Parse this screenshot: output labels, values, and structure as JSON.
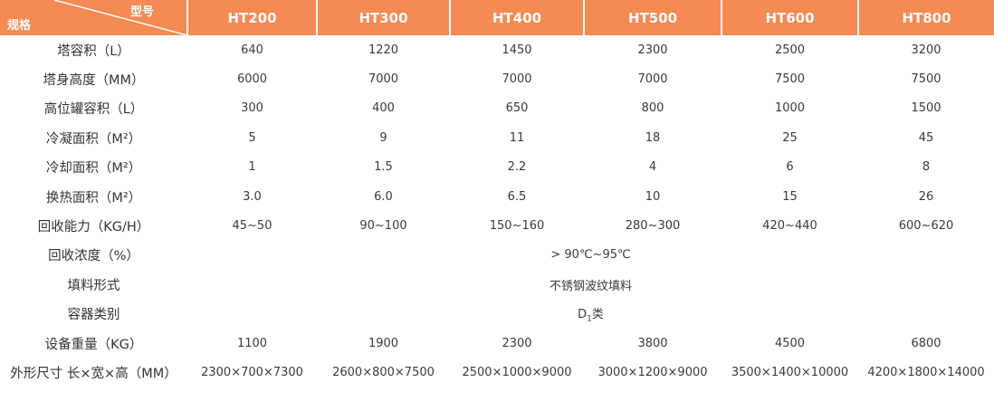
{
  "header": {
    "corner_top": "型号",
    "corner_bottom": "规格",
    "models": [
      "HT200",
      "HT300",
      "HT400",
      "HT500",
      "HT600",
      "HT800"
    ]
  },
  "colors": {
    "header_bg": "#f58a52",
    "header_text": "#ffffff"
  },
  "rows": [
    {
      "label": "塔容积（L）",
      "values": [
        "640",
        "1220",
        "1450",
        "2300",
        "2500",
        "3200"
      ]
    },
    {
      "label": "塔身高度（MM）",
      "values": [
        "6000",
        "7000",
        "7000",
        "7000",
        "7500",
        "7500"
      ]
    },
    {
      "label": "高位罐容积（L）",
      "values": [
        "300",
        "400",
        "650",
        "800",
        "1000",
        "1500"
      ]
    },
    {
      "label": "冷凝面积（M²）",
      "values": [
        "5",
        "9",
        "11",
        "18",
        "25",
        "45"
      ]
    },
    {
      "label": "冷却面积（M²）",
      "values": [
        "1",
        "1.5",
        "2.2",
        "4",
        "6",
        "8"
      ]
    },
    {
      "label": "换热面积（M²）",
      "values": [
        "3.0",
        "6.0",
        "6.5",
        "10",
        "15",
        "26"
      ]
    },
    {
      "label": "回收能力（KG/H）",
      "values": [
        "45~50",
        "90~100",
        "150~160",
        "280~300",
        "420~440",
        "600~620"
      ]
    }
  ],
  "merged_rows": [
    {
      "label": "回收浓度（%）",
      "value": "> 90℃~95℃"
    },
    {
      "label": "填料形式",
      "value": "不锈钢波纹填料"
    },
    {
      "label": "容器类别",
      "value_main": "D",
      "value_sub": "1",
      "value_suffix": "类"
    }
  ],
  "rows2": [
    {
      "label": "设备重量（KG）",
      "values": [
        "1100",
        "1900",
        "2300",
        "3800",
        "4500",
        "6800"
      ]
    },
    {
      "label": "外形尺寸 长×宽×高（MM）",
      "values": [
        "2300×700×7300",
        "2600×800×7500",
        "2500×1000×9000",
        "3000×1200×9000",
        "3500×1400×10000",
        "4200×1800×14000"
      ]
    }
  ]
}
